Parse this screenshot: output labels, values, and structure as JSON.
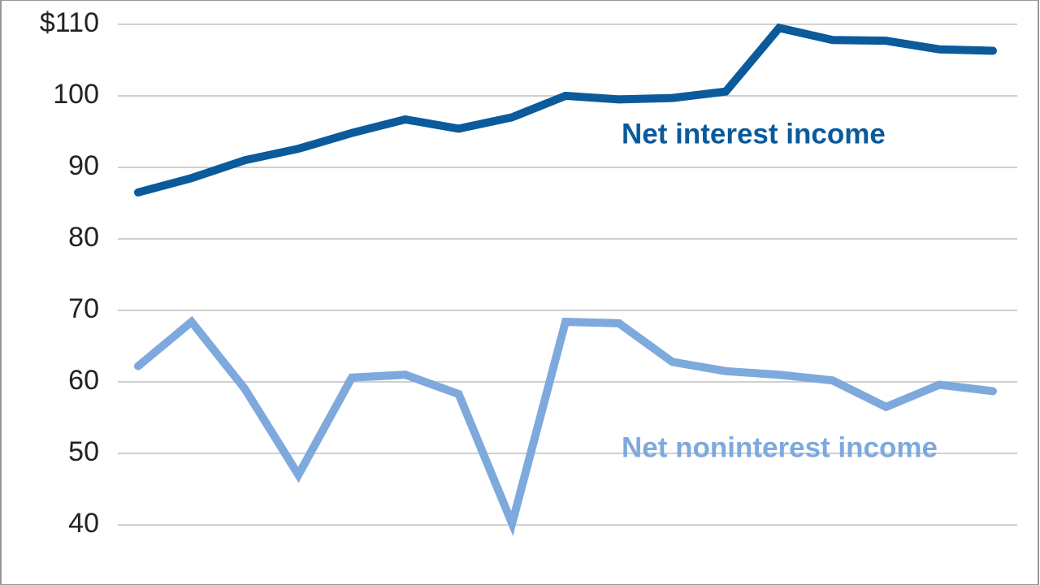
{
  "chart_data": {
    "type": "line",
    "categories": [
      null,
      null,
      null,
      null,
      null,
      null,
      null,
      null,
      null,
      null,
      null,
      null,
      null,
      null,
      null,
      null,
      null
    ],
    "series": [
      {
        "name": "Net interest income",
        "color": "#0a5a9c",
        "values": [
          86.5,
          88.5,
          91,
          92.6,
          94.8,
          96.7,
          95.4,
          97,
          100,
          99.5,
          99.7,
          100.6,
          109.5,
          107.8,
          107.7,
          106.5,
          106.3
        ]
      },
      {
        "name": "Net noninterest income",
        "color": "#7ea9dd",
        "values": [
          62.2,
          68.4,
          59,
          47,
          60.6,
          61,
          58.3,
          40.2,
          68.4,
          68.2,
          62.8,
          61.5,
          61,
          60.2,
          56.5,
          59.6,
          58.7
        ]
      }
    ],
    "ylim": [
      31.6,
      113.4
    ],
    "yticks": [
      {
        "value": 110,
        "label": "$110"
      },
      100,
      90,
      80,
      70,
      60,
      50,
      40
    ],
    "grid": true
  }
}
